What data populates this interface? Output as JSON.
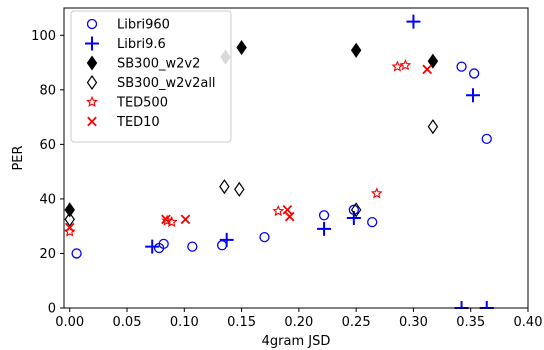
{
  "chart_data": {
    "type": "scatter",
    "xlabel": "4gram JSD",
    "ylabel": "PER",
    "xlim": [
      -0.005,
      0.4
    ],
    "ylim": [
      0,
      110
    ],
    "xticks": [
      "0.00",
      "0.05",
      "0.10",
      "0.15",
      "0.20",
      "0.25",
      "0.30",
      "0.35",
      "0.40"
    ],
    "yticks": [
      "0",
      "20",
      "40",
      "60",
      "80",
      "100"
    ],
    "grid": false,
    "legend_position": "top-left",
    "series": [
      {
        "name": "Libri960",
        "marker": "circle-open",
        "color": "#0000ff",
        "points": [
          [
            0.006,
            20
          ],
          [
            0.078,
            22
          ],
          [
            0.082,
            23.5
          ],
          [
            0.107,
            22.5
          ],
          [
            0.133,
            23
          ],
          [
            0.17,
            26
          ],
          [
            0.222,
            34
          ],
          [
            0.248,
            36
          ],
          [
            0.264,
            31.5
          ],
          [
            0.342,
            88.5
          ],
          [
            0.353,
            86
          ],
          [
            0.364,
            62
          ]
        ]
      },
      {
        "name": "Libri9.6",
        "marker": "plus",
        "color": "#0000ff",
        "points": [
          [
            0.072,
            22.5
          ],
          [
            0.137,
            25
          ],
          [
            0.222,
            29
          ],
          [
            0.248,
            33
          ],
          [
            0.3,
            105
          ],
          [
            0.352,
            78
          ],
          [
            0.342,
            0
          ],
          [
            0.364,
            0
          ]
        ]
      },
      {
        "name": "SB300_w2v2",
        "marker": "diamond-filled",
        "color": "#000000",
        "points": [
          [
            0.0,
            36
          ],
          [
            0.136,
            92
          ],
          [
            0.15,
            95.5
          ],
          [
            0.25,
            94.5
          ],
          [
            0.317,
            90.5
          ]
        ]
      },
      {
        "name": "SB300_w2v2all",
        "marker": "diamond-open",
        "color": "#000000",
        "points": [
          [
            0.0,
            32.5
          ],
          [
            0.135,
            44.5
          ],
          [
            0.148,
            43.5
          ],
          [
            0.25,
            36
          ],
          [
            0.317,
            66.5
          ]
        ]
      },
      {
        "name": "TED500",
        "marker": "star",
        "color": "#ff0000",
        "points": [
          [
            0.0,
            28
          ],
          [
            0.085,
            32
          ],
          [
            0.089,
            31.5
          ],
          [
            0.182,
            35.5
          ],
          [
            0.268,
            42
          ],
          [
            0.286,
            88.5
          ],
          [
            0.293,
            89
          ]
        ]
      },
      {
        "name": "TED10",
        "marker": "x",
        "color": "#ff0000",
        "points": [
          [
            0.0,
            29.5
          ],
          [
            0.084,
            32.5
          ],
          [
            0.101,
            32.5
          ],
          [
            0.19,
            36
          ],
          [
            0.192,
            33.5
          ],
          [
            0.312,
            87.5
          ]
        ]
      }
    ]
  }
}
